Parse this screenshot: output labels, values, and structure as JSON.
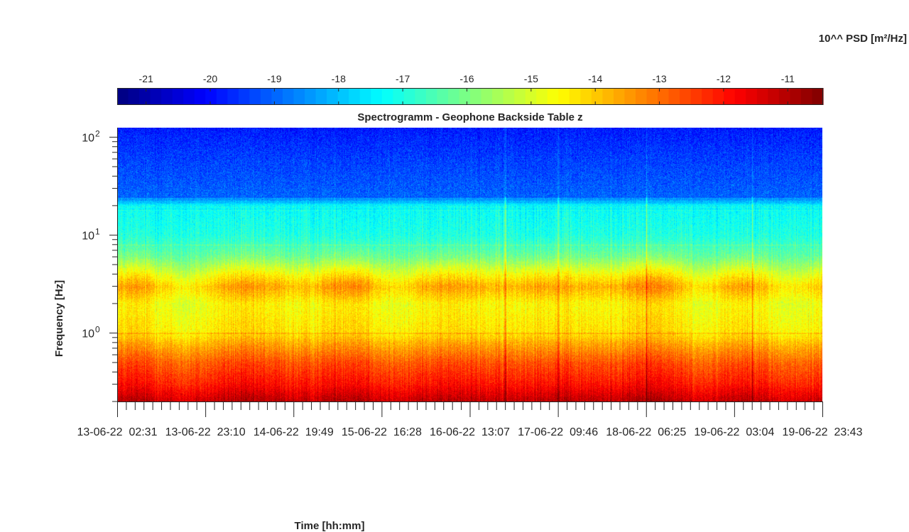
{
  "chart_data": {
    "type": "heatmap",
    "title": "Spectrogramm - Geophone Backside Table z",
    "xlabel": "Time [hh:mm]",
    "ylabel": "Frequency [Hz]",
    "yscale": "log",
    "ylim": [
      0.2,
      125
    ],
    "y_ticks": [
      {
        "exp": 2,
        "label": "10",
        "sup": "2",
        "value": 100
      },
      {
        "exp": 1,
        "label": "10",
        "sup": "1",
        "value": 10
      },
      {
        "exp": 0,
        "label": "10",
        "sup": "0",
        "value": 1
      }
    ],
    "x_tick_labels": [
      "13-06-22  02:31",
      "13-06-22  23:10",
      "14-06-22  19:49",
      "15-06-22  16:28",
      "16-06-22  13:07",
      "17-06-22  09:46",
      "18-06-22  06:25",
      "19-06-22  03:04",
      "19-06-22  23:43"
    ],
    "x_range": [
      "13-06-22 02:31",
      "19-06-22 23:43"
    ],
    "colorbar": {
      "label": "10^^ PSD [m²/Hz]",
      "colormap": "jet",
      "range": [
        -21.45,
        -10.45
      ],
      "tick_labels": [
        "-21",
        "-20",
        "-19",
        "-18",
        "-17",
        "-16",
        "-15",
        "-14",
        "-13",
        "-12",
        "-11"
      ],
      "tick_values": [
        -21,
        -20,
        -19,
        -18,
        -17,
        -16,
        -15,
        -14,
        -13,
        -12,
        -11
      ],
      "placement": "top"
    },
    "psd_profile": [
      {
        "freq_hz": 0.2,
        "log_psd": -11.4
      },
      {
        "freq_hz": 0.3,
        "log_psd": -12.3
      },
      {
        "freq_hz": 0.5,
        "log_psd": -13.0
      },
      {
        "freq_hz": 0.8,
        "log_psd": -14.0
      },
      {
        "freq_hz": 1.0,
        "log_psd": -14.6
      },
      {
        "freq_hz": 2.0,
        "log_psd": -15.0
      },
      {
        "freq_hz": 3.0,
        "log_psd": -14.4
      },
      {
        "freq_hz": 6.0,
        "log_psd": -16.3
      },
      {
        "freq_hz": 10.0,
        "log_psd": -17.0
      },
      {
        "freq_hz": 20.0,
        "log_psd": -17.3
      },
      {
        "freq_hz": 25.0,
        "log_psd": -19.0
      },
      {
        "freq_hz": 60.0,
        "log_psd": -19.4
      },
      {
        "freq_hz": 125.0,
        "log_psd": -19.8
      }
    ],
    "grid": false
  }
}
